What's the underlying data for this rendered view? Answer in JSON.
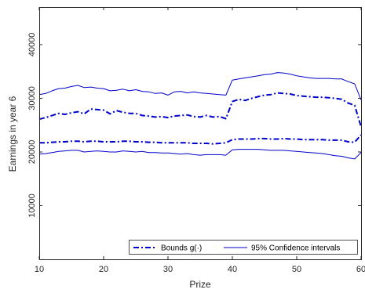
{
  "chart_data": {
    "type": "line",
    "title": "",
    "xlabel": "Prize",
    "ylabel": "Earnings in year 6",
    "xlim": [
      10,
      60
    ],
    "ylim": [
      0,
      47000
    ],
    "x_ticks": [
      10,
      20,
      30,
      40,
      50,
      60
    ],
    "y_ticks": [
      10000,
      20000,
      30000,
      40000
    ],
    "grid": false,
    "legend_position": "bottom-right",
    "colors": {
      "series": "#0000cc",
      "axis": "#262626"
    },
    "series": [
      {
        "name": "Bounds g(·)",
        "style": "dashdot",
        "x": [
          10,
          11,
          12,
          13,
          14,
          15,
          16,
          17,
          18,
          19,
          20,
          21,
          22,
          23,
          24,
          25,
          26,
          27,
          28,
          29,
          30,
          31,
          32,
          33,
          34,
          35,
          36,
          37,
          38,
          39,
          40,
          41,
          42,
          43,
          44,
          45,
          46,
          47,
          48,
          49,
          50,
          51,
          52,
          53,
          54,
          55,
          56,
          57,
          58,
          59,
          60
        ],
        "y": [
          26100,
          26400,
          26800,
          27200,
          27000,
          27300,
          27500,
          27100,
          28000,
          27900,
          27800,
          27100,
          27700,
          27400,
          27200,
          27200,
          26800,
          26700,
          26500,
          26600,
          26400,
          26700,
          26800,
          26900,
          26600,
          26500,
          26800,
          26500,
          26600,
          26200,
          29400,
          29800,
          29600,
          30000,
          30300,
          30600,
          30700,
          31000,
          30900,
          30800,
          30500,
          30400,
          30300,
          30200,
          30200,
          30100,
          30000,
          29800,
          29100,
          28700,
          24700
        ]
      },
      {
        "name": "",
        "style": "dashdot",
        "x": [
          10,
          11,
          12,
          13,
          14,
          15,
          16,
          17,
          18,
          19,
          20,
          21,
          22,
          23,
          24,
          25,
          26,
          27,
          28,
          29,
          30,
          31,
          32,
          33,
          34,
          35,
          36,
          37,
          38,
          39,
          40,
          41,
          42,
          43,
          44,
          45,
          46,
          47,
          48,
          49,
          50,
          51,
          52,
          53,
          54,
          55,
          56,
          57,
          58,
          59,
          60
        ],
        "y": [
          21700,
          21700,
          21800,
          21900,
          21900,
          22000,
          22000,
          21900,
          22000,
          22000,
          21900,
          21900,
          21900,
          22000,
          22000,
          21900,
          21900,
          21800,
          21800,
          21700,
          21700,
          21700,
          21700,
          21700,
          21600,
          21600,
          21600,
          21500,
          21600,
          21700,
          22300,
          22400,
          22400,
          22400,
          22500,
          22500,
          22400,
          22400,
          22500,
          22400,
          22400,
          22300,
          22300,
          22300,
          22300,
          22200,
          22200,
          22200,
          21900,
          21800,
          23200
        ]
      },
      {
        "name": "95% Confidence intervals",
        "style": "solid",
        "x": [
          10,
          11,
          12,
          13,
          14,
          15,
          16,
          17,
          18,
          19,
          20,
          21,
          22,
          23,
          24,
          25,
          26,
          27,
          28,
          29,
          30,
          31,
          32,
          33,
          34,
          35,
          36,
          37,
          38,
          39,
          40,
          41,
          42,
          43,
          44,
          45,
          46,
          47,
          48,
          49,
          50,
          51,
          52,
          53,
          54,
          55,
          56,
          57,
          58,
          59,
          60
        ],
        "y": [
          30700,
          30900,
          31400,
          31800,
          31900,
          32200,
          32400,
          32000,
          32100,
          31900,
          31800,
          31400,
          31500,
          31700,
          31400,
          31600,
          31300,
          31200,
          30900,
          31000,
          30600,
          31200,
          31300,
          31000,
          31200,
          31000,
          30900,
          30800,
          30700,
          30600,
          33400,
          33600,
          33800,
          34000,
          34200,
          34400,
          34500,
          34800,
          34700,
          34500,
          34200,
          34000,
          33800,
          33700,
          33700,
          33700,
          33600,
          33600,
          33100,
          32700,
          29700
        ]
      },
      {
        "name": "",
        "style": "solid",
        "x": [
          10,
          11,
          12,
          13,
          14,
          15,
          16,
          17,
          18,
          19,
          20,
          21,
          22,
          23,
          24,
          25,
          26,
          27,
          28,
          29,
          30,
          31,
          32,
          33,
          34,
          35,
          36,
          37,
          38,
          39,
          40,
          41,
          42,
          43,
          44,
          45,
          46,
          47,
          48,
          49,
          50,
          51,
          52,
          53,
          54,
          55,
          56,
          57,
          58,
          59,
          60
        ],
        "y": [
          19600,
          19700,
          19900,
          20100,
          20200,
          20300,
          20300,
          20000,
          20100,
          20200,
          20100,
          20000,
          20000,
          20200,
          20100,
          20000,
          20100,
          19900,
          19900,
          19800,
          19800,
          19700,
          19600,
          19700,
          19500,
          19400,
          19500,
          19500,
          19500,
          19400,
          20400,
          20500,
          20500,
          20500,
          20500,
          20400,
          20300,
          20300,
          20300,
          20200,
          20100,
          20000,
          19900,
          19800,
          19700,
          19500,
          19300,
          19200,
          18900,
          18700,
          19900
        ]
      }
    ]
  }
}
